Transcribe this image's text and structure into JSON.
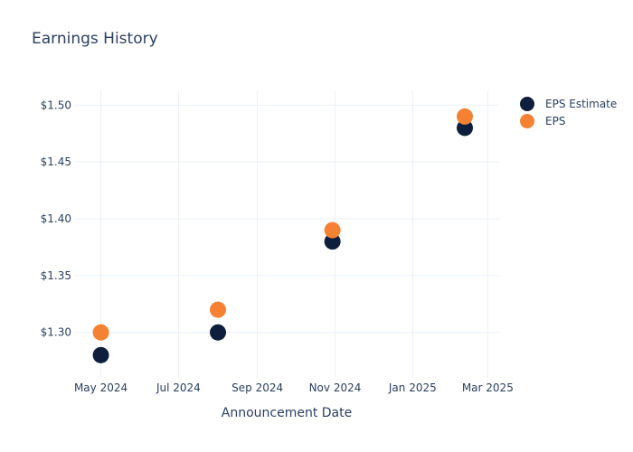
{
  "chart_data": {
    "type": "scatter",
    "title": "Earnings History",
    "xlabel": "Announcement Date",
    "ylabel": "",
    "x_type": "date",
    "xlim": [
      "2024-04-10",
      "2025-03-10"
    ],
    "ylim": [
      1.26,
      1.513
    ],
    "x_ticks": [
      {
        "date": "2024-05-01",
        "label": "May 2024"
      },
      {
        "date": "2024-07-01",
        "label": "Jul 2024"
      },
      {
        "date": "2024-09-01",
        "label": "Sep 2024"
      },
      {
        "date": "2024-11-01",
        "label": "Nov 2024"
      },
      {
        "date": "2025-01-01",
        "label": "Jan 2025"
      },
      {
        "date": "2025-03-01",
        "label": "Mar 2025"
      }
    ],
    "y_ticks": [
      {
        "value": 1.3,
        "label": "$1.30"
      },
      {
        "value": 1.35,
        "label": "$1.35"
      },
      {
        "value": 1.4,
        "label": "$1.40"
      },
      {
        "value": 1.45,
        "label": "$1.45"
      },
      {
        "value": 1.5,
        "label": "$1.50"
      }
    ],
    "grid": true,
    "legend_position": "top-right",
    "x": [
      "2024-05-01",
      "2024-08-01",
      "2024-10-30",
      "2025-02-11"
    ],
    "series": [
      {
        "name": "EPS Estimate",
        "color": "#0d1f3c",
        "values": [
          1.28,
          1.3,
          1.38,
          1.48
        ]
      },
      {
        "name": "EPS",
        "color": "#f58233",
        "values": [
          1.3,
          1.32,
          1.39,
          1.49
        ]
      }
    ]
  }
}
